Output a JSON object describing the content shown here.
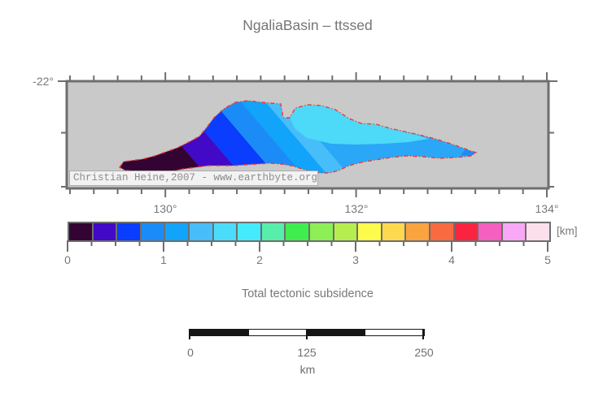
{
  "title": "NgaliaBasin – ttssed",
  "map": {
    "lat_label": "-22°",
    "lon_ticks": [
      "130°",
      "132°",
      "134°"
    ],
    "copyright": "Christian Heine,2007 - www.earthbyte.org",
    "background": "#c9c9c9",
    "frame_color": "#6e6e6e",
    "outline_color": "#ef3b33",
    "fill_base": "#2aa7f7",
    "band_colors": [
      "#330433",
      "#4209c6",
      "#0a3dfd",
      "#1b8cf7",
      "#12a3fb",
      "#47bdfa"
    ],
    "lens_color": "#4dd9f8",
    "tip_patch_color": "#1b8cf7"
  },
  "colorbar": {
    "unit_label": "[km]",
    "tick_labels": [
      "0",
      "1",
      "2",
      "3",
      "4",
      "5"
    ],
    "colors": [
      "#330433",
      "#4209c6",
      "#0a3dfd",
      "#1b8cf7",
      "#12a3fb",
      "#47bdfa",
      "#4cdcfb",
      "#45ebfd",
      "#57eeab",
      "#3fee4e",
      "#8dee56",
      "#b5ee4e",
      "#fdfb4c",
      "#fcd94e",
      "#f9a43f",
      "#f96a41",
      "#fa2440",
      "#f55fc0",
      "#f9a8f5",
      "#fbdfeb"
    ]
  },
  "caption": "Total tectonic subsidence",
  "scalebar": {
    "tick_labels": [
      "0",
      "125",
      "250"
    ],
    "unit": "km",
    "segment_colors": [
      "#161616",
      "#ffffff",
      "#161616",
      "#ffffff"
    ]
  },
  "chart_data": {
    "type": "heatmap",
    "title": "NgaliaBasin – ttssed",
    "caption": "Total tectonic subsidence",
    "colorbar": {
      "unit": "km",
      "min": 0,
      "max": 5,
      "step": 0.25,
      "tick_values": [
        0,
        1,
        2,
        3,
        4,
        5
      ]
    },
    "map_axes": {
      "lon_tick_values_deg": [
        130,
        132,
        134
      ],
      "lat_tick_value_deg": -22
    },
    "basin_subsidence_range_km": [
      0,
      2.0
    ],
    "scalebar_km": [
      0,
      125,
      250
    ]
  }
}
